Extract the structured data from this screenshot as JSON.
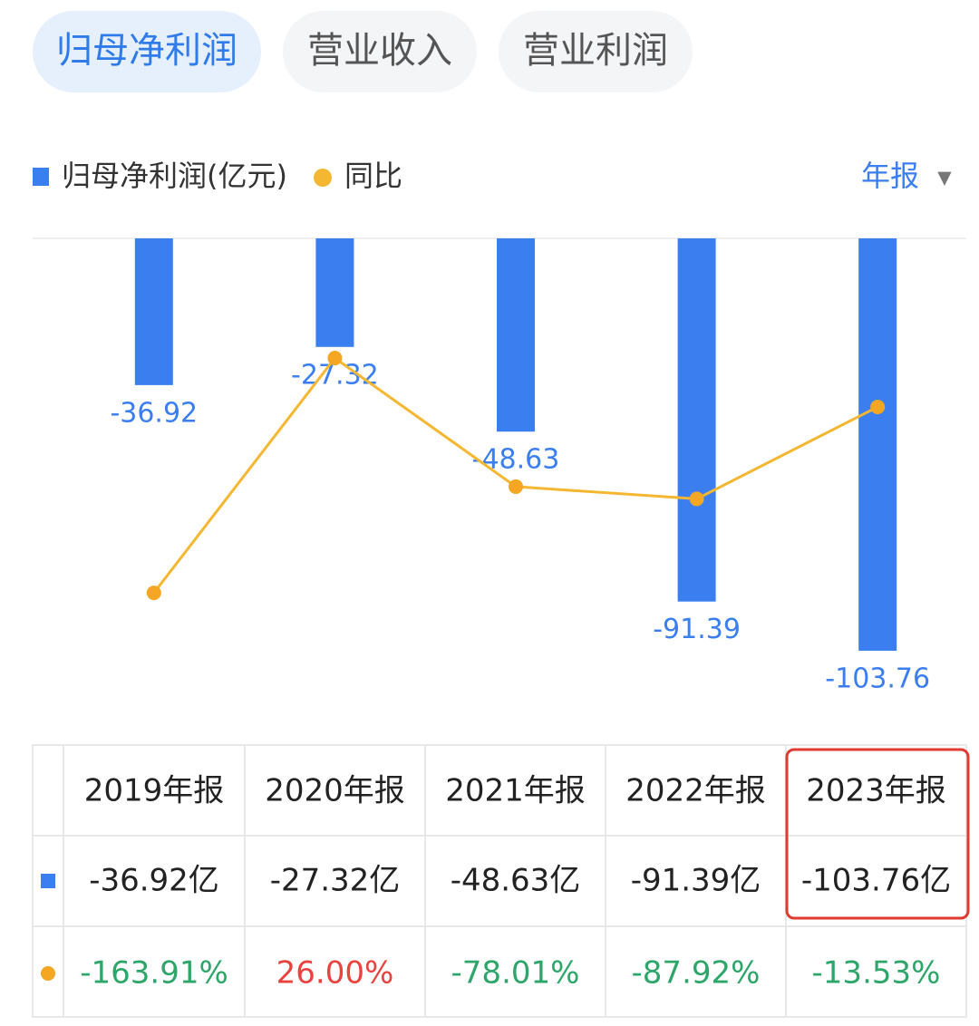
{
  "tabs": [
    "归母净利润",
    "营业收入",
    "营业利润"
  ],
  "period_selector": "年报",
  "chart_data": {
    "type": "bar",
    "series": [
      {
        "name": "归母净利润(亿元)",
        "type": "bar",
        "color": "#3a7ef0",
        "values": [
          -36.92,
          -27.32,
          -48.63,
          -91.39,
          -103.76
        ]
      },
      {
        "name": "同比",
        "type": "line",
        "axis": "y2",
        "color": "#f5b731",
        "values": [
          -163.91,
          26.0,
          -78.01,
          -87.92,
          -13.53
        ]
      }
    ],
    "ylim": [
      -104,
      0
    ],
    "y2lim": [
      -211.5,
      122.8
    ]
  },
  "table": {
    "header": [
      "2019年报",
      "2020年报",
      "2021年报",
      "2022年报",
      "2023年报"
    ],
    "rows": [
      [
        "-36.92亿",
        "-27.32亿",
        "-48.63亿",
        "-91.39亿",
        "-103.76亿"
      ],
      [
        "-163.91%",
        "26.00%",
        "-78.01%",
        "-87.92%",
        "-13.53%"
      ]
    ]
  }
}
